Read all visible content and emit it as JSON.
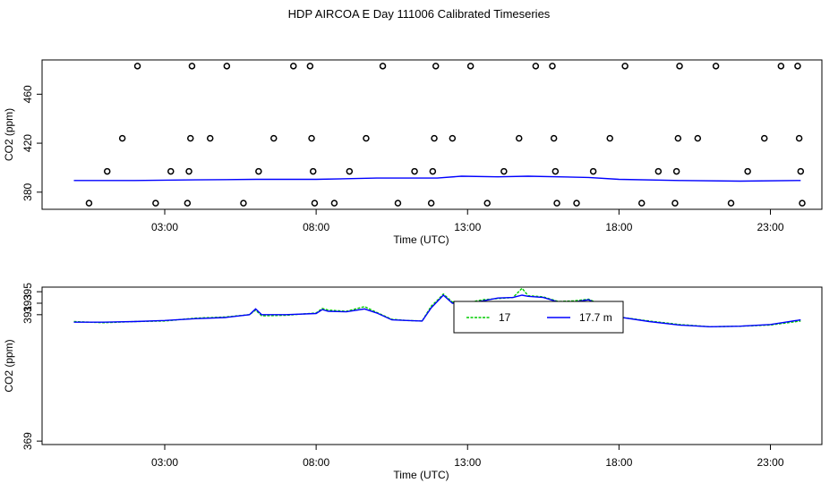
{
  "title": "HDP AIRCOA E  Day 111006  Calibrated Timeseries",
  "chart_data": [
    {
      "type": "scatter",
      "xlabel": "Time (UTC)",
      "ylabel": "CO2 (ppm)",
      "xlim": [
        -1.05,
        24.7
      ],
      "ylim": [
        366,
        488
      ],
      "x_ticks": [
        3,
        8,
        13,
        18,
        23
      ],
      "x_tick_labels": [
        "03:00",
        "08:00",
        "13:00",
        "18:00",
        "23:00"
      ],
      "y_ticks": [
        380,
        420,
        460
      ],
      "y_tick_labels": [
        "380",
        "420",
        "460"
      ],
      "points": [
        {
          "x": 0.5,
          "y": 371
        },
        {
          "x": 1.1,
          "y": 397
        },
        {
          "x": 1.6,
          "y": 424
        },
        {
          "x": 2.1,
          "y": 483
        },
        {
          "x": 2.7,
          "y": 371
        },
        {
          "x": 3.2,
          "y": 397
        },
        {
          "x": 3.75,
          "y": 371
        },
        {
          "x": 3.8,
          "y": 397
        },
        {
          "x": 3.85,
          "y": 424
        },
        {
          "x": 3.9,
          "y": 483
        },
        {
          "x": 4.5,
          "y": 424
        },
        {
          "x": 5.05,
          "y": 483
        },
        {
          "x": 5.6,
          "y": 371
        },
        {
          "x": 6.1,
          "y": 397
        },
        {
          "x": 6.6,
          "y": 424
        },
        {
          "x": 7.25,
          "y": 483
        },
        {
          "x": 7.8,
          "y": 483
        },
        {
          "x": 7.85,
          "y": 424
        },
        {
          "x": 7.9,
          "y": 397
        },
        {
          "x": 7.95,
          "y": 371
        },
        {
          "x": 8.6,
          "y": 371
        },
        {
          "x": 9.1,
          "y": 397
        },
        {
          "x": 9.65,
          "y": 424
        },
        {
          "x": 10.2,
          "y": 483
        },
        {
          "x": 10.7,
          "y": 371
        },
        {
          "x": 11.25,
          "y": 397
        },
        {
          "x": 11.8,
          "y": 371
        },
        {
          "x": 11.85,
          "y": 397
        },
        {
          "x": 11.9,
          "y": 424
        },
        {
          "x": 11.95,
          "y": 483
        },
        {
          "x": 12.5,
          "y": 424
        },
        {
          "x": 13.1,
          "y": 483
        },
        {
          "x": 13.65,
          "y": 371
        },
        {
          "x": 14.2,
          "y": 397
        },
        {
          "x": 14.7,
          "y": 424
        },
        {
          "x": 15.25,
          "y": 483
        },
        {
          "x": 15.8,
          "y": 483
        },
        {
          "x": 15.85,
          "y": 424
        },
        {
          "x": 15.9,
          "y": 397
        },
        {
          "x": 15.95,
          "y": 371
        },
        {
          "x": 16.6,
          "y": 371
        },
        {
          "x": 17.15,
          "y": 397
        },
        {
          "x": 17.7,
          "y": 424
        },
        {
          "x": 18.2,
          "y": 483
        },
        {
          "x": 18.75,
          "y": 371
        },
        {
          "x": 19.3,
          "y": 397
        },
        {
          "x": 19.85,
          "y": 371
        },
        {
          "x": 19.9,
          "y": 397
        },
        {
          "x": 19.95,
          "y": 424
        },
        {
          "x": 20.0,
          "y": 483
        },
        {
          "x": 20.6,
          "y": 424
        },
        {
          "x": 21.2,
          "y": 483
        },
        {
          "x": 21.7,
          "y": 371
        },
        {
          "x": 22.25,
          "y": 397
        },
        {
          "x": 22.8,
          "y": 424
        },
        {
          "x": 23.35,
          "y": 483
        },
        {
          "x": 23.9,
          "y": 483
        },
        {
          "x": 23.95,
          "y": 424
        },
        {
          "x": 24.0,
          "y": 397
        },
        {
          "x": 24.05,
          "y": 371
        }
      ],
      "series": [
        {
          "name": "17.7 m",
          "color": "#0000ff",
          "x": [
            0,
            2,
            4,
            6,
            8,
            10,
            12,
            12.8,
            14,
            15,
            16,
            17,
            18,
            20,
            22,
            24
          ],
          "y": [
            389.5,
            389.5,
            390,
            390.5,
            390.5,
            391.5,
            391.5,
            393,
            392.5,
            393,
            392.5,
            392,
            390.5,
            389.5,
            389,
            389.5
          ]
        }
      ]
    },
    {
      "type": "line",
      "xlabel": "Time (UTC)",
      "ylabel": "CO2 (ppm)",
      "xlim": [
        -1.05,
        24.7
      ],
      "ylim": [
        368.4,
        395.8
      ],
      "x_ticks": [
        3,
        8,
        13,
        18,
        23
      ],
      "x_tick_labels": [
        "03:00",
        "08:00",
        "13:00",
        "18:00",
        "23:00"
      ],
      "y_ticks": [
        369,
        391,
        393,
        395
      ],
      "y_tick_labels": [
        "369",
        "391",
        "393",
        "395"
      ],
      "legend": {
        "position": "top-center",
        "entries": [
          "17",
          "17.7 m"
        ]
      },
      "series": [
        {
          "name": "17",
          "color": "#00cc00",
          "style": "dashed",
          "x": [
            0,
            1,
            2,
            3,
            4,
            5,
            5.8,
            6,
            6.2,
            7,
            8,
            8.2,
            8.4,
            9,
            9.6,
            10,
            10.5,
            11,
            11.5,
            11.8,
            12,
            12.2,
            12.5,
            13,
            13.5,
            14,
            14.5,
            14.8,
            15,
            15.5,
            16,
            16.5,
            17,
            17.5,
            18,
            19,
            20,
            21,
            22,
            23,
            24
          ],
          "y": [
            389.8,
            389.6,
            389.8,
            389.9,
            390.4,
            390.6,
            391.0,
            391.8,
            390.8,
            390.9,
            391.3,
            392.1,
            391.8,
            391.6,
            392.4,
            391.4,
            390.2,
            390.0,
            389.9,
            392.5,
            393.5,
            394.6,
            393.2,
            393.1,
            393.6,
            393.8,
            394.0,
            395.6,
            394.3,
            394.1,
            393.3,
            393.4,
            393.7,
            392.5,
            390.6,
            389.9,
            389.3,
            388.9,
            389.0,
            389.2,
            389.9
          ]
        },
        {
          "name": "17.7 m",
          "color": "#0000ff",
          "style": "solid",
          "x": [
            0,
            1,
            2,
            3,
            4,
            5,
            5.8,
            6,
            6.2,
            7,
            8,
            8.2,
            8.4,
            9,
            9.6,
            10,
            10.5,
            11,
            11.5,
            11.8,
            12,
            12.2,
            12.5,
            13,
            13.5,
            14,
            14.5,
            14.8,
            15,
            15.5,
            16,
            16.5,
            17,
            17.5,
            18,
            19,
            20,
            21,
            22,
            23,
            24
          ],
          "y": [
            389.7,
            389.7,
            389.8,
            390.0,
            390.3,
            390.5,
            391.0,
            392.0,
            391.0,
            391.0,
            391.2,
            391.9,
            391.6,
            391.5,
            392.0,
            391.3,
            390.1,
            390.0,
            389.9,
            392.2,
            393.3,
            394.4,
            393.0,
            393.0,
            393.4,
            393.9,
            394.0,
            394.4,
            394.2,
            394.0,
            393.2,
            393.2,
            393.6,
            392.3,
            390.6,
            389.8,
            389.2,
            388.9,
            389.0,
            389.3,
            390.1
          ]
        }
      ]
    }
  ]
}
